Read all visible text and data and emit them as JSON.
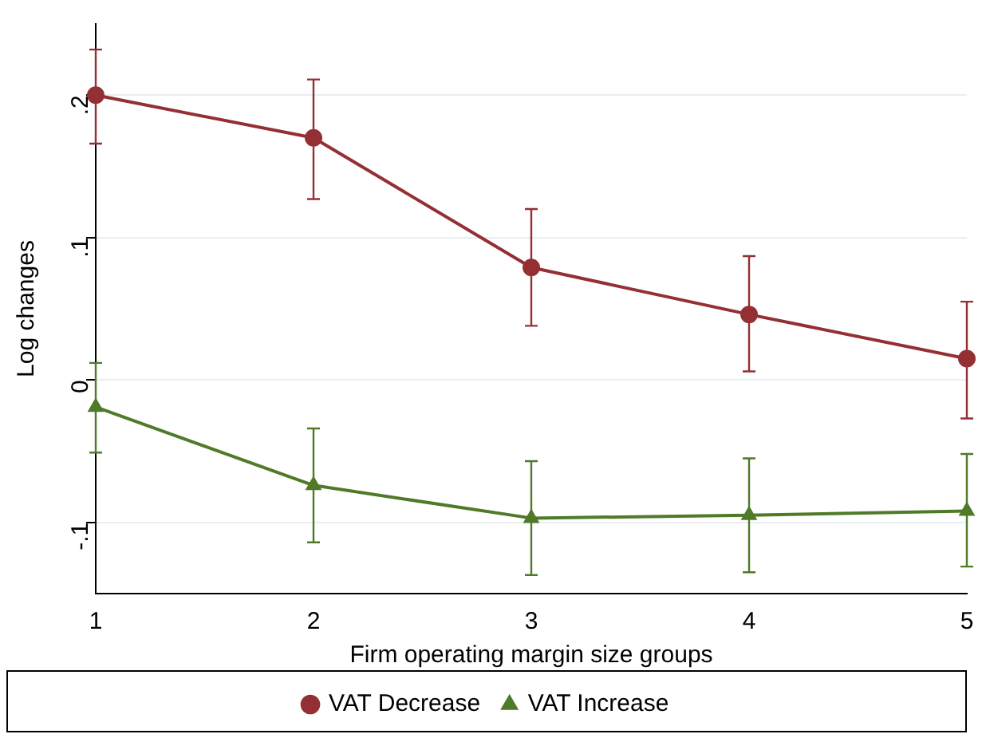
{
  "chart_data": {
    "type": "line",
    "xlabel": "Firm operating margin size groups",
    "ylabel": "Log changes",
    "x": [
      1,
      2,
      3,
      4,
      5
    ],
    "xlim": [
      1,
      5
    ],
    "xticks": [
      1,
      2,
      3,
      4,
      5
    ],
    "ylim": [
      -0.15,
      0.25
    ],
    "yticks": [
      {
        "value": -0.1,
        "label": "-.1"
      },
      {
        "value": 0,
        "label": "0"
      },
      {
        "value": 0.1,
        "label": ".1"
      },
      {
        "value": 0.2,
        "label": ".2"
      }
    ],
    "grid": "y",
    "legend": "bottom",
    "line_style": "solid",
    "series": [
      {
        "name": "VAT Decrease",
        "color": "#943034",
        "marker": "circle",
        "values": [
          0.2,
          0.17,
          0.079,
          0.046,
          0.015
        ],
        "errors": [
          [
            0.166,
            0.232
          ],
          [
            0.127,
            0.211
          ],
          [
            0.038,
            0.12
          ],
          [
            0.006,
            0.087
          ],
          [
            -0.027,
            0.055
          ]
        ]
      },
      {
        "name": "VAT Increase",
        "color": "#4f7a28",
        "marker": "triangle",
        "values": [
          -0.019,
          -0.074,
          -0.097,
          -0.095,
          -0.092
        ],
        "errors": [
          [
            -0.051,
            0.012
          ],
          [
            -0.114,
            -0.034
          ],
          [
            -0.137,
            -0.057
          ],
          [
            -0.135,
            -0.055
          ],
          [
            -0.131,
            -0.052
          ]
        ]
      }
    ]
  }
}
